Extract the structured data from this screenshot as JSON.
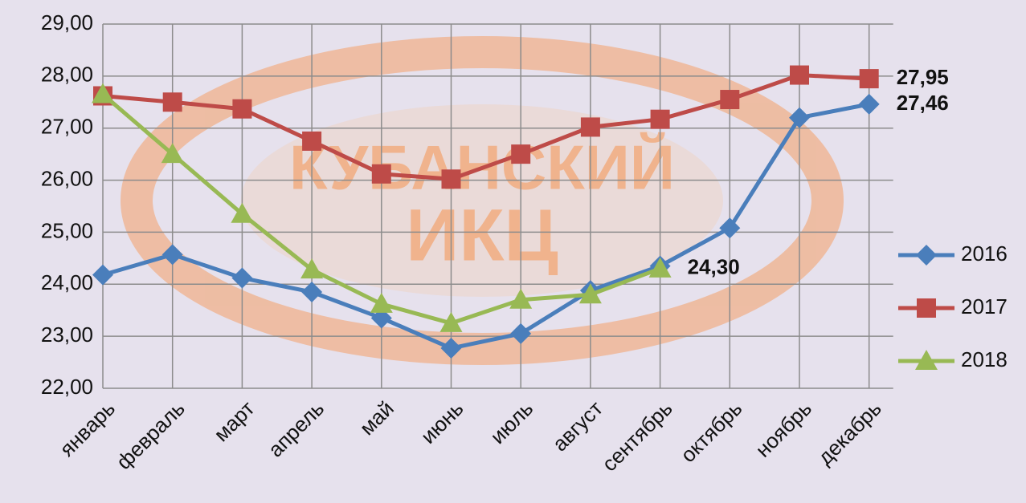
{
  "chart_data": {
    "type": "line",
    "watermark": [
      "КУБАНСКИЙ",
      "ИКЦ"
    ],
    "categories": [
      "январь",
      "февраль",
      "март",
      "апрель",
      "май",
      "июнь",
      "июль",
      "август",
      "сентябрь",
      "октябрь",
      "ноябрь",
      "декабрь"
    ],
    "series": [
      {
        "name": "2016",
        "color": "#4a7ebb",
        "marker": "diamond",
        "values": [
          24.18,
          24.57,
          24.12,
          23.85,
          23.35,
          22.77,
          23.05,
          23.88,
          24.35,
          25.08,
          27.2,
          27.46
        ],
        "value_labels": [
          null,
          null,
          null,
          null,
          null,
          null,
          null,
          null,
          null,
          null,
          null,
          "27,46"
        ]
      },
      {
        "name": "2017",
        "color": "#be4b48",
        "marker": "square",
        "values": [
          27.62,
          27.5,
          27.37,
          26.75,
          26.12,
          26.02,
          26.5,
          27.02,
          27.17,
          27.55,
          28.02,
          27.95
        ],
        "value_labels": [
          null,
          null,
          null,
          null,
          null,
          null,
          null,
          null,
          null,
          null,
          null,
          "27,95"
        ]
      },
      {
        "name": "2018",
        "color": "#98b954",
        "marker": "triangle",
        "values": [
          27.65,
          26.5,
          25.35,
          24.28,
          23.62,
          23.25,
          23.7,
          23.8,
          24.3,
          null,
          null,
          null
        ],
        "value_labels": [
          null,
          null,
          null,
          null,
          null,
          null,
          null,
          null,
          "24,30",
          null,
          null,
          null
        ]
      }
    ],
    "ylim": [
      22,
      29
    ],
    "yticks": [
      {
        "value": 22,
        "label": "22,00"
      },
      {
        "value": 23,
        "label": "23,00"
      },
      {
        "value": 24,
        "label": "24,00"
      },
      {
        "value": 25,
        "label": "25,00"
      },
      {
        "value": 26,
        "label": "26,00"
      },
      {
        "value": 27,
        "label": "27,00"
      },
      {
        "value": 28,
        "label": "28,00"
      },
      {
        "value": 29,
        "label": "29,00"
      }
    ],
    "grid": true,
    "legend": "right"
  }
}
